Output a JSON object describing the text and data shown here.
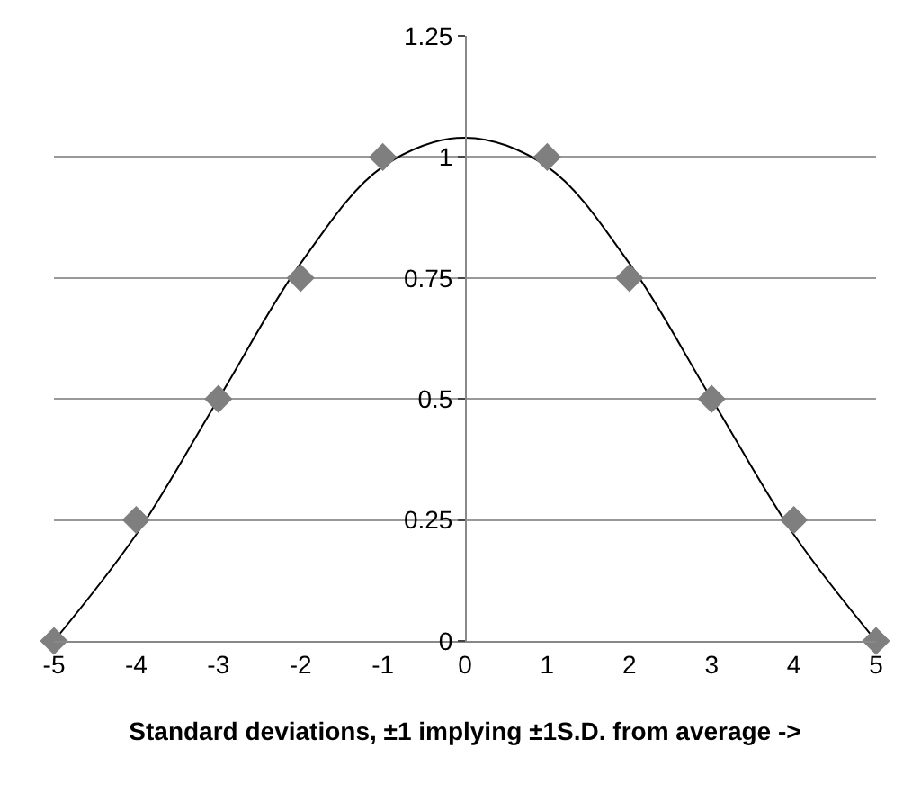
{
  "chart_data": {
    "type": "scatter",
    "xlabel": "Standard deviations, ±1 implying ±1S.D. from average ->",
    "series": [
      {
        "type": "line",
        "color": "#000000",
        "marker": "none",
        "x": [
          -5,
          -4,
          -3,
          -2,
          -1,
          0,
          1,
          2,
          3,
          4,
          5
        ],
        "values": [
          0,
          0.22,
          0.5,
          0.78,
          0.98,
          1.04,
          0.98,
          0.78,
          0.5,
          0.22,
          0
        ]
      },
      {
        "color": "#7f7f7f",
        "marker": "diamond",
        "x": [
          -5,
          -4,
          -3,
          -2,
          -1,
          1,
          2,
          3,
          4,
          5
        ],
        "values": [
          0,
          0.25,
          0.5,
          0.75,
          1,
          1,
          0.75,
          0.5,
          0.25,
          0
        ]
      }
    ],
    "xlim": [
      -5,
      5
    ],
    "xticks": [
      -5,
      -4,
      -3,
      -2,
      -1,
      0,
      1,
      2,
      3,
      4,
      5
    ],
    "ylim": [
      0,
      1.25
    ],
    "yticks": [
      0,
      0.25,
      0.5,
      0.75,
      1,
      1.25
    ],
    "grid": "y"
  }
}
